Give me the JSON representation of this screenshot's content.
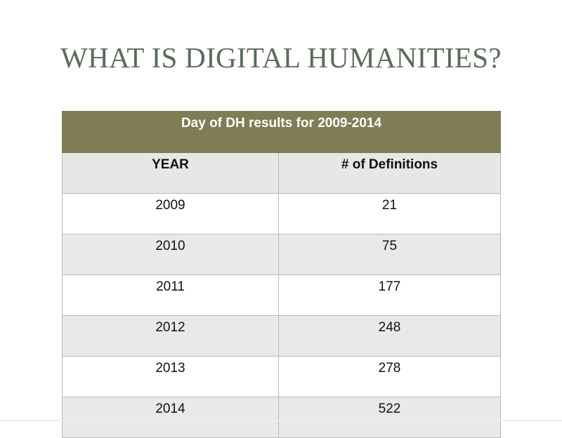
{
  "slide": {
    "title": "WHAT IS DIGITAL HUMANITIES?"
  },
  "table": {
    "caption": "Day of DH results for 2009-2014",
    "headers": {
      "year": "YEAR",
      "definitions": "# of Definitions"
    },
    "rows": [
      {
        "year": "2009",
        "definitions": "21"
      },
      {
        "year": "2010",
        "definitions": "75"
      },
      {
        "year": "2011",
        "definitions": "177"
      },
      {
        "year": "2012",
        "definitions": "248"
      },
      {
        "year": "2013",
        "definitions": "278"
      },
      {
        "year": "2014",
        "definitions": "522"
      }
    ]
  },
  "colors": {
    "title_text": "#5b6b5b",
    "caption_background": "#7f7d56",
    "header_background": "#e7e7e5",
    "striped_row_background": "#e9e9e7"
  }
}
